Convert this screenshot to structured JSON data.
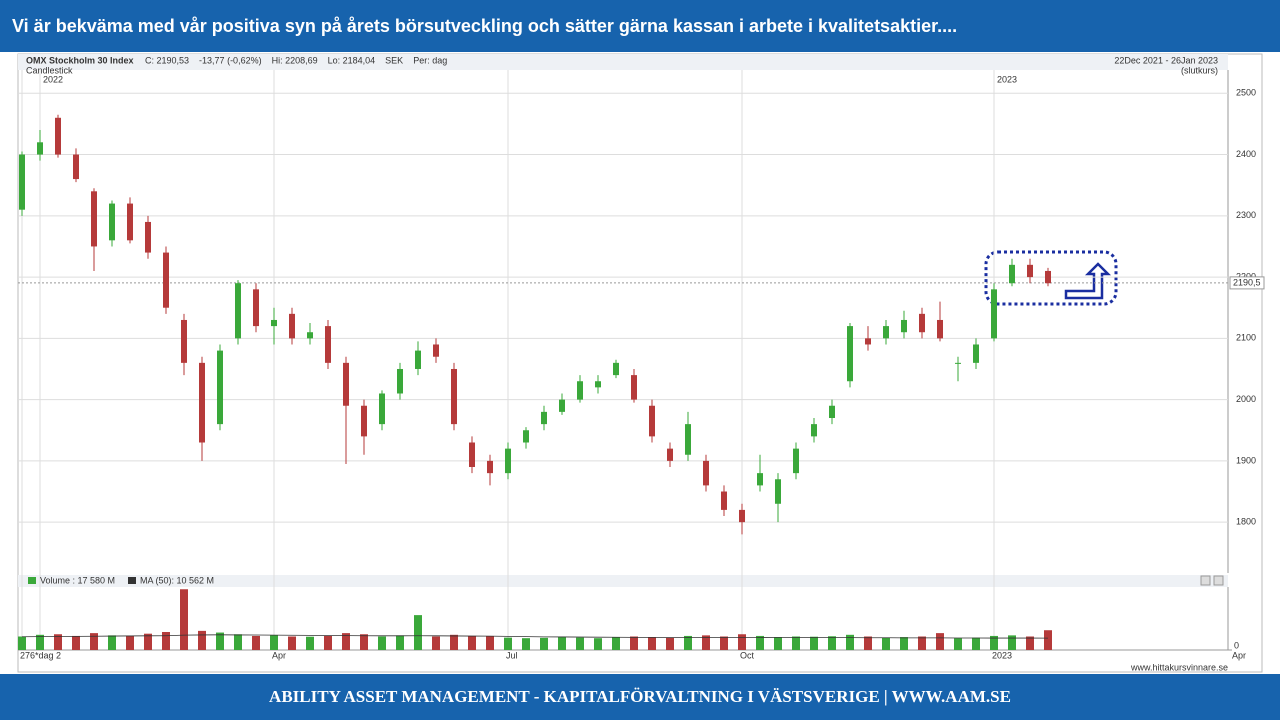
{
  "header": {
    "title": "Vi är bekväma med vår positiva syn på årets börsutveckling  och sätter gärna kassan  i arbete i kvalitetsaktier...."
  },
  "footer": {
    "text": "ABILITY ASSET MANAGEMENT -  KAPITALFÖRVALTNING I VÄSTSVERIGE   |   WWW.AAM.SE"
  },
  "chart_data": {
    "type": "candlestick",
    "title": "OMX Stockholm 30 Index",
    "info": [
      "C: 2190,53",
      "-13,77 (-0,62%)",
      "Hi: 2208,69",
      "Lo: 2184,04",
      "SEK",
      "Per: dag"
    ],
    "chart_style": "Candlestick",
    "date_range": "22Dec 2021 - 26Jan 2023",
    "price_basis": "(slutkurs)",
    "source": "www.hittakursvinnare.se",
    "categories": [
      "276*dag 2",
      null,
      null,
      null,
      null,
      null,
      null,
      null,
      null,
      null,
      null,
      null,
      null,
      null,
      "Apr",
      null,
      null,
      null,
      null,
      null,
      null,
      null,
      null,
      null,
      null,
      null,
      null,
      "Jul",
      null,
      null,
      null,
      null,
      null,
      null,
      null,
      null,
      null,
      null,
      null,
      null,
      "Oct",
      null,
      null,
      null,
      null,
      null,
      null,
      null,
      null,
      null,
      null,
      null,
      null,
      null,
      "2023",
      null,
      null,
      null
    ],
    "top_labels": [
      null,
      "2022",
      null,
      null,
      null,
      null,
      null,
      null,
      null,
      null,
      null,
      null,
      null,
      null,
      null,
      null,
      null,
      null,
      null,
      null,
      null,
      null,
      null,
      null,
      null,
      null,
      null,
      null,
      null,
      null,
      null,
      null,
      null,
      null,
      null,
      null,
      null,
      null,
      null,
      null,
      null,
      null,
      null,
      null,
      null,
      null,
      null,
      null,
      null,
      null,
      null,
      null,
      null,
      null,
      "2023",
      null,
      null,
      null
    ],
    "edge_label": "Apr",
    "open": [
      2310,
      2400,
      2460,
      2400,
      2340,
      2260,
      2320,
      2290,
      2240,
      2130,
      2060,
      1960,
      2100,
      2180,
      2120,
      2140,
      2100,
      2120,
      2060,
      1990,
      1960,
      2010,
      2050,
      2090,
      2050,
      1930,
      1900,
      1880,
      1930,
      1960,
      1980,
      2000,
      2020,
      2040,
      2040,
      1990,
      1920,
      1910,
      1900,
      1850,
      1820,
      1860,
      1830,
      1880,
      1940,
      1970,
      2030,
      2100,
      2100,
      2110,
      2140,
      2130,
      2060,
      2060,
      2100,
      2190,
      2220,
      2210
    ],
    "high": [
      2405,
      2440,
      2465,
      2410,
      2345,
      2325,
      2330,
      2300,
      2250,
      2140,
      2070,
      2090,
      2195,
      2190,
      2150,
      2150,
      2125,
      2130,
      2070,
      2000,
      2015,
      2060,
      2095,
      2100,
      2060,
      1940,
      1910,
      1930,
      1955,
      1990,
      2010,
      2040,
      2040,
      2065,
      2050,
      2000,
      1930,
      1980,
      1910,
      1860,
      1830,
      1910,
      1880,
      1930,
      1970,
      2000,
      2125,
      2120,
      2130,
      2145,
      2150,
      2160,
      2070,
      2100,
      2190,
      2230,
      2230,
      2215
    ],
    "low": [
      2300,
      2390,
      2395,
      2355,
      2210,
      2250,
      2255,
      2230,
      2140,
      2040,
      1900,
      1950,
      2090,
      2110,
      2090,
      2090,
      2090,
      2050,
      1895,
      1910,
      1950,
      2000,
      2040,
      2060,
      1950,
      1880,
      1860,
      1870,
      1920,
      1950,
      1975,
      1995,
      2010,
      2035,
      1995,
      1930,
      1890,
      1900,
      1850,
      1810,
      1780,
      1850,
      1800,
      1870,
      1930,
      1960,
      2020,
      2080,
      2090,
      2100,
      2100,
      2095,
      2030,
      2050,
      2095,
      2185,
      2190,
      2185
    ],
    "close": [
      2400,
      2420,
      2400,
      2360,
      2250,
      2320,
      2260,
      2240,
      2150,
      2060,
      1930,
      2080,
      2190,
      2120,
      2130,
      2100,
      2110,
      2060,
      1990,
      1940,
      2010,
      2050,
      2080,
      2070,
      1960,
      1890,
      1880,
      1920,
      1950,
      1980,
      2000,
      2030,
      2030,
      2060,
      2000,
      1940,
      1900,
      1960,
      1860,
      1820,
      1800,
      1880,
      1870,
      1920,
      1960,
      1990,
      2120,
      2090,
      2120,
      2130,
      2110,
      2100,
      2060,
      2090,
      2180,
      2220,
      2200,
      2190
    ],
    "up_color": "#3aa83a",
    "down_color": "#b53a3a",
    "ylim": [
      1717,
      2538
    ],
    "yticks": [
      1800,
      1900,
      2000,
      2100,
      2200,
      2300,
      2400,
      2500
    ],
    "grid": true,
    "last_price": {
      "value": 2190.5,
      "label": "2190,5"
    },
    "volume": {
      "legend": "Volume : 17 580 M",
      "ma_legend": "MA (50): 10 562 M",
      "ylim": [
        0,
        56000
      ],
      "yticks": [
        0
      ],
      "ma_color": "#333333",
      "values": [
        12000,
        13500,
        14000,
        12500,
        15000,
        13000,
        12800,
        14500,
        16000,
        54000,
        17000,
        15500,
        14000,
        12500,
        13000,
        12000,
        11800,
        12500,
        15000,
        14000,
        12000,
        13000,
        31000,
        12000,
        13500,
        12500,
        12000,
        11000,
        10500,
        10800,
        11500,
        11000,
        10500,
        11200,
        12000,
        11500,
        10800,
        12500,
        13000,
        12000,
        14000,
        12500,
        11500,
        12000,
        11800,
        12200,
        13500,
        12000,
        11000,
        11500,
        12000,
        15000,
        10500,
        11000,
        12500,
        13000,
        12000,
        17580
      ],
      "ma": [
        11800,
        11900,
        12000,
        12100,
        12200,
        12400,
        12500,
        12600,
        12700,
        13200,
        13400,
        13500,
        13400,
        13300,
        13200,
        13100,
        13000,
        12900,
        12800,
        12700,
        12600,
        12600,
        12700,
        12600,
        12500,
        12400,
        12300,
        12100,
        11900,
        11700,
        11600,
        11500,
        11400,
        11300,
        11200,
        11200,
        11100,
        11100,
        11100,
        11100,
        11200,
        11200,
        11100,
        11100,
        11000,
        11000,
        11000,
        10900,
        10900,
        10800,
        10800,
        10800,
        10700,
        10700,
        10600,
        10600,
        10600,
        10562
      ]
    }
  }
}
